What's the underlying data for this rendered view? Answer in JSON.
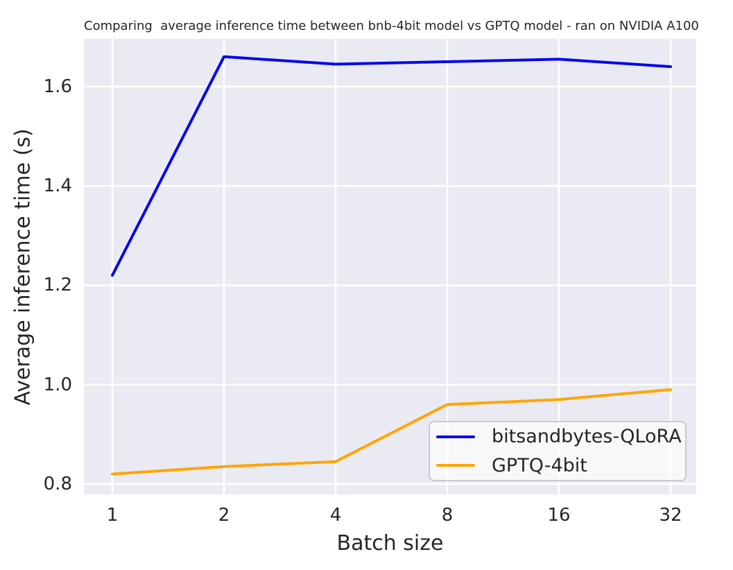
{
  "figure": {
    "background_color": "#ffffff"
  },
  "chart_data": {
    "type": "line",
    "title": "Comparing  average inference time between bnb-4bit model vs GPTQ model - ran on NVIDIA A100",
    "xlabel": "Batch size",
    "ylabel": "Average inference time (s)",
    "categories": [
      "1",
      "2",
      "4",
      "8",
      "16",
      "32"
    ],
    "series": [
      {
        "name": "bitsandbytes-QLoRA",
        "color": "#0606f0",
        "values": [
          1.22,
          1.66,
          1.645,
          1.65,
          1.655,
          1.64
        ]
      },
      {
        "name": "GPTQ-4bit",
        "color": "#ffa500",
        "values": [
          0.82,
          0.835,
          0.845,
          0.96,
          0.97,
          0.99
        ]
      }
    ],
    "yticks": [
      0.8,
      1.0,
      1.2,
      1.4,
      1.6
    ],
    "ytick_labels": [
      "0.8",
      "1.0",
      "1.2",
      "1.4",
      "1.6"
    ],
    "ylim": [
      0.779,
      1.696
    ],
    "grid": true,
    "legend_position": "lower right",
    "plot_background_color": "#eaeaf2",
    "grid_color": "#ffffff",
    "text_color": "#262626"
  }
}
